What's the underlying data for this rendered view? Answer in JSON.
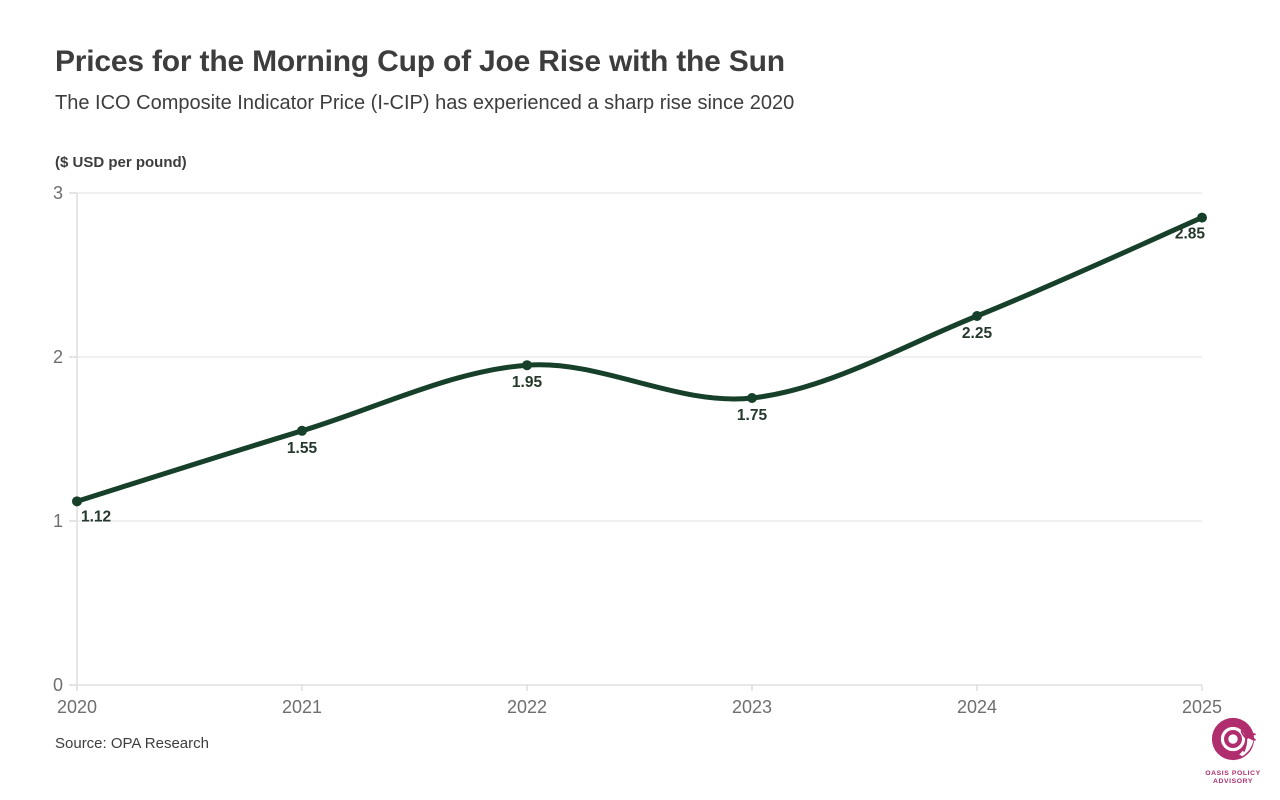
{
  "header": {
    "title": "Prices for the Morning Cup of Joe Rise with the Sun",
    "subtitle": "The ICO Composite Indicator Price (I-CIP) has experienced a sharp rise since 2020"
  },
  "chart_data": {
    "type": "line",
    "series_name": "ICO Composite Indicator Price (I-CIP)",
    "x": [
      2020,
      2021,
      2022,
      2023,
      2024,
      2025
    ],
    "values": [
      1.12,
      1.55,
      1.95,
      1.75,
      2.25,
      2.85
    ],
    "point_labels": [
      "1.12",
      "1.55",
      "1.95",
      "1.75",
      "2.25",
      "2.85"
    ],
    "ylabel": "($ USD per pound)",
    "xlabel": "",
    "ylim": [
      0,
      3
    ],
    "yticks": [
      0,
      1,
      2,
      3
    ],
    "grid": "horizontal",
    "legend": "none",
    "line_color": "#17402a",
    "point_color": "#17402a",
    "label_color": "#24382b",
    "tick_color": "#6e6e6e",
    "grid_color": "#e8e8e8",
    "axis_color": "#d9d9d9"
  },
  "footer": {
    "source": "Source: OPA Research"
  },
  "logo": {
    "line1": "OASIS POLICY",
    "line2": "ADVISORY",
    "brand_color": "#b02e6e"
  }
}
